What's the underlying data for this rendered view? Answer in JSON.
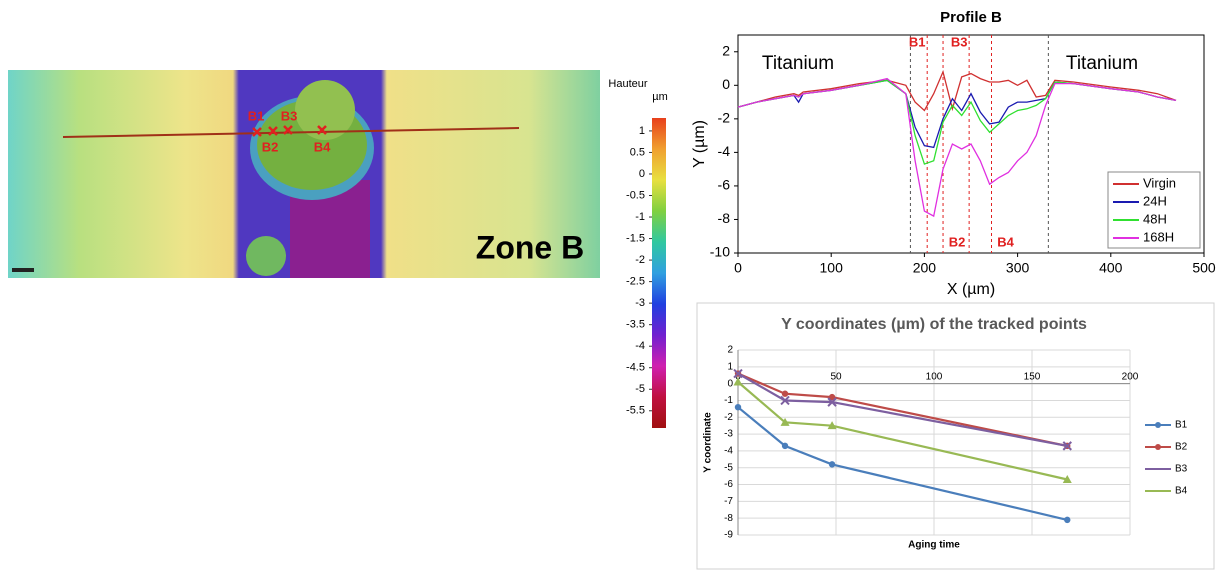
{
  "chart_data": [
    {
      "type": "heatmap",
      "title": "Zone B",
      "colorbar_label": "Hauteur",
      "colorbar_unit": "µm",
      "clim": [
        -5.9,
        1.3
      ],
      "cticks": [
        1,
        0.5,
        0,
        -0.5,
        -1,
        -1.5,
        -2,
        -2.5,
        -3,
        -3.5,
        -4,
        -4.5,
        -5,
        -5.5
      ],
      "colors": [
        "#e8401c",
        "#f0a030",
        "#e8e040",
        "#80d040",
        "#30c8a0",
        "#30a0e0",
        "#2040e0",
        "#7020d0",
        "#d020b0",
        "#c01040",
        "#a01010"
      ],
      "points": [
        "B1",
        "B2",
        "B3",
        "B4"
      ]
    },
    {
      "type": "line",
      "title": "Profile B",
      "xlabel": "X (µm)",
      "ylabel": "Y (µm)",
      "xlim": [
        0,
        500
      ],
      "xticks": [
        0,
        100,
        200,
        300,
        400,
        500
      ],
      "ylim": [
        -10,
        3
      ],
      "yticks": [
        -10,
        -8,
        -6,
        -4,
        -2,
        0,
        2
      ],
      "x": [
        0,
        20,
        40,
        60,
        65,
        70,
        100,
        130,
        160,
        180,
        190,
        200,
        210,
        220,
        230,
        240,
        250,
        260,
        270,
        280,
        290,
        300,
        310,
        320,
        330,
        340,
        360,
        400,
        430,
        450,
        470
      ],
      "series": [
        {
          "name": "Virgin",
          "color": "#d03030",
          "values": [
            -1.3,
            -1.0,
            -0.7,
            -0.5,
            -0.6,
            -0.4,
            -0.2,
            0.1,
            0.3,
            0,
            -1.0,
            -1.5,
            -0.5,
            0.8,
            -1.4,
            0.5,
            0.7,
            0.4,
            0.2,
            0.2,
            0.3,
            0,
            0.3,
            -0.7,
            -0.6,
            0.3,
            0.2,
            -0.1,
            -0.3,
            -0.5,
            -0.9
          ]
        },
        {
          "name": "24H",
          "color": "#1a1ab0",
          "values": [
            -1.3,
            -1.0,
            -0.8,
            -0.6,
            -1.0,
            -0.5,
            -0.3,
            0,
            0.3,
            -0.5,
            -2.5,
            -3.6,
            -3.7,
            -2.0,
            -0.8,
            -1.5,
            -0.5,
            -1.6,
            -2.3,
            -2.2,
            -1.3,
            -1.0,
            -1.0,
            -0.9,
            -0.8,
            0.2,
            0.1,
            -0.2,
            -0.4,
            -0.7,
            -0.9
          ]
        },
        {
          "name": "48H",
          "color": "#30e030",
          "values": [
            -1.3,
            -1.0,
            -0.8,
            -0.6,
            -0.7,
            -0.5,
            -0.3,
            0,
            0.3,
            -0.5,
            -3.0,
            -4.7,
            -4.5,
            -2.2,
            -1.2,
            -1.8,
            -1.0,
            -2.1,
            -2.8,
            -2.3,
            -1.8,
            -1.5,
            -1.4,
            -1.2,
            -0.8,
            0.2,
            0.1,
            -0.2,
            -0.4,
            -0.7,
            -0.9
          ]
        },
        {
          "name": "168H",
          "color": "#e030e0",
          "values": [
            -1.3,
            -1.0,
            -0.8,
            -0.6,
            -0.7,
            -0.5,
            -0.3,
            0,
            0.4,
            -0.5,
            -4.5,
            -7.5,
            -7.8,
            -5.0,
            -3.5,
            -3.8,
            -3.5,
            -4.5,
            -5.9,
            -5.5,
            -5.2,
            -4.5,
            -4.0,
            -3.0,
            -1.2,
            0.1,
            0.1,
            -0.2,
            -0.4,
            -0.7,
            -0.9
          ]
        }
      ],
      "annotations": [
        "Titanium",
        "Titanium"
      ],
      "boundaries": [
        185,
        333
      ],
      "boundary_color": "#555555",
      "markers": [
        {
          "label": "B1",
          "x": 203
        },
        {
          "label": "B2",
          "x": 220
        },
        {
          "label": "B3",
          "x": 248
        },
        {
          "label": "B4",
          "x": 272
        }
      ],
      "marker_color": "#e02020",
      "legend": "lower right"
    },
    {
      "type": "line",
      "title": "Y coordinates (µm) of the tracked points",
      "xlabel": "Aging time",
      "ylabel": "Y coordinate",
      "xlim": [
        0,
        200
      ],
      "xticks": [
        0,
        50,
        100,
        150,
        200
      ],
      "ylim": [
        -9,
        2
      ],
      "yticks": [
        2,
        1,
        0,
        -1,
        -2,
        -3,
        -4,
        -5,
        -6,
        -7,
        -8,
        -9
      ],
      "x": [
        0,
        24,
        48,
        168
      ],
      "grid": true,
      "legend": "right",
      "series": [
        {
          "name": "B1",
          "color": "#4a7ebb",
          "marker": "circle",
          "values": [
            -1.4,
            -3.7,
            -4.8,
            -8.1
          ]
        },
        {
          "name": "B2",
          "color": "#be4b48",
          "marker": "circle",
          "values": [
            0.6,
            -0.6,
            -0.8,
            -3.7
          ]
        },
        {
          "name": "B3",
          "color": "#7d5fa0",
          "marker": "x",
          "values": [
            0.6,
            -1.0,
            -1.1,
            -3.7
          ]
        },
        {
          "name": "B4",
          "color": "#98b954",
          "marker": "triangle",
          "values": [
            0.1,
            -2.3,
            -2.5,
            -5.7
          ]
        }
      ]
    }
  ]
}
